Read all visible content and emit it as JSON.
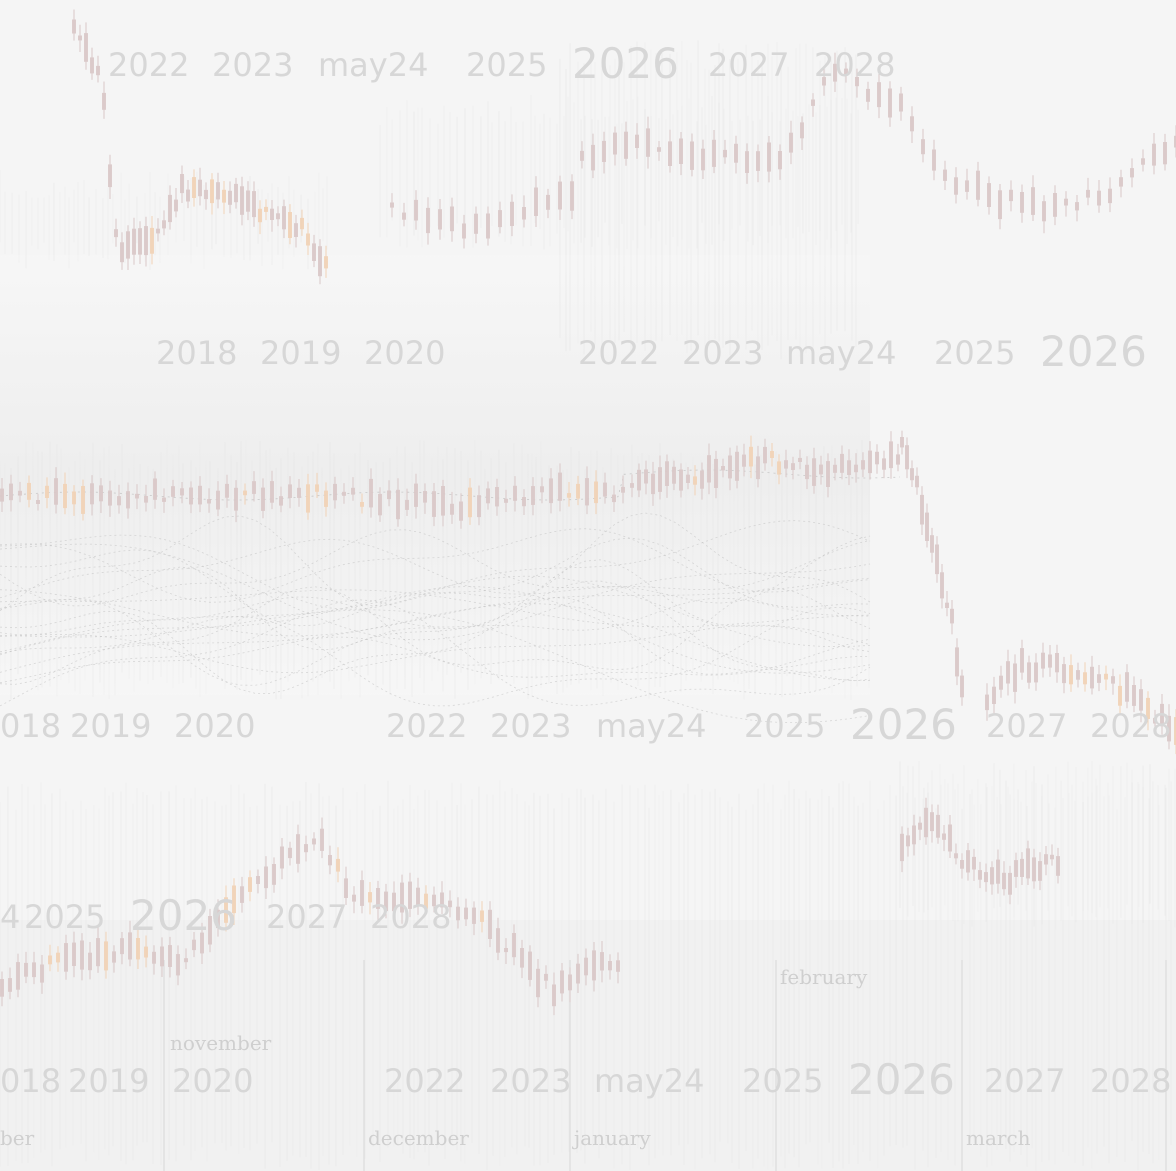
{
  "year_rows": [
    {
      "labels": [
        "2022",
        "2023",
        "may24",
        "2025",
        "2026",
        "2027",
        "2028"
      ]
    },
    {
      "labels": [
        "2018",
        "2019",
        "2020",
        "2022",
        "2023",
        "may24",
        "2025",
        "2026"
      ]
    },
    {
      "labels": [
        "018",
        "2019",
        "2020",
        "2022",
        "2023",
        "may24",
        "2025",
        "2026",
        "2027",
        "2028"
      ]
    },
    {
      "labels": [
        "4",
        "2025",
        "2026",
        "2027",
        "2028"
      ]
    },
    {
      "labels": [
        "018",
        "2019",
        "2020",
        "2022",
        "2023",
        "may24",
        "2025",
        "2026",
        "2027",
        "2028"
      ]
    }
  ],
  "month_labels": [
    "november",
    "february",
    "ber",
    "december",
    "january",
    "march"
  ],
  "colors": {
    "background": "#f4f4f4",
    "candle": "#d9c8c8",
    "accent": "#f1d2b6",
    "grid": "#dcdcdc",
    "text": "#d7d7d7"
  }
}
